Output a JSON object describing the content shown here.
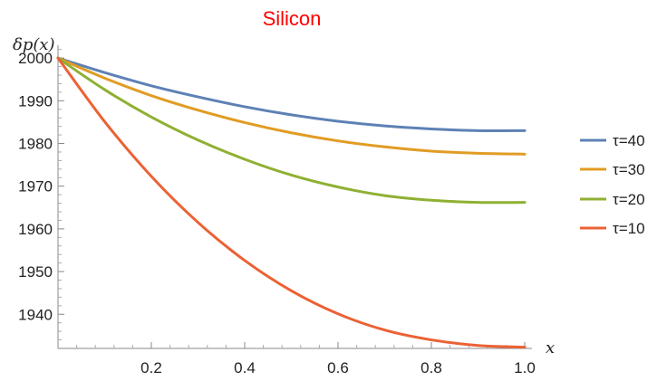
{
  "chart_data": {
    "type": "line",
    "title": "Silicon",
    "xlabel": "x",
    "ylabel": "δp(x)",
    "xlim": [
      0,
      1.0
    ],
    "ylim": [
      1932,
      2003
    ],
    "x_ticks": [
      0.2,
      0.4,
      0.6,
      0.8,
      1.0
    ],
    "x_tick_labels": [
      "0.2",
      "0.4",
      "0.6",
      "0.8",
      "1.0"
    ],
    "y_ticks": [
      1940,
      1950,
      1960,
      1970,
      1980,
      1990,
      2000
    ],
    "y_tick_labels": [
      "1940",
      "1950",
      "1960",
      "1970",
      "1980",
      "1990",
      "2000"
    ],
    "grid": false,
    "legend_position": "right",
    "x": [
      0,
      0.1,
      0.2,
      0.3,
      0.4,
      0.5,
      0.6,
      0.7,
      0.8,
      0.9,
      1.0
    ],
    "series": [
      {
        "name": "τ=40",
        "color": "#5e81b5",
        "values": [
          2000,
          1996.6,
          1993.5,
          1990.9,
          1988.6,
          1986.7,
          1985.2,
          1984.1,
          1983.4,
          1983.0,
          1983.0
        ]
      },
      {
        "name": "τ=30",
        "color": "#e19c24",
        "values": [
          2000,
          1995.3,
          1991.2,
          1987.8,
          1984.9,
          1982.5,
          1980.6,
          1979.2,
          1978.2,
          1977.7,
          1977.5
        ]
      },
      {
        "name": "τ=20",
        "color": "#8fb032",
        "values": [
          2000,
          1992.6,
          1986.2,
          1980.8,
          1976.3,
          1972.6,
          1969.8,
          1967.8,
          1966.7,
          1966.2,
          1966.2
        ]
      },
      {
        "name": "τ=10",
        "color": "#eb6235",
        "values": [
          2000,
          1985.1,
          1972.3,
          1961.5,
          1952.6,
          1945.5,
          1940.1,
          1936.3,
          1934.0,
          1932.7,
          1932.3
        ]
      }
    ]
  }
}
